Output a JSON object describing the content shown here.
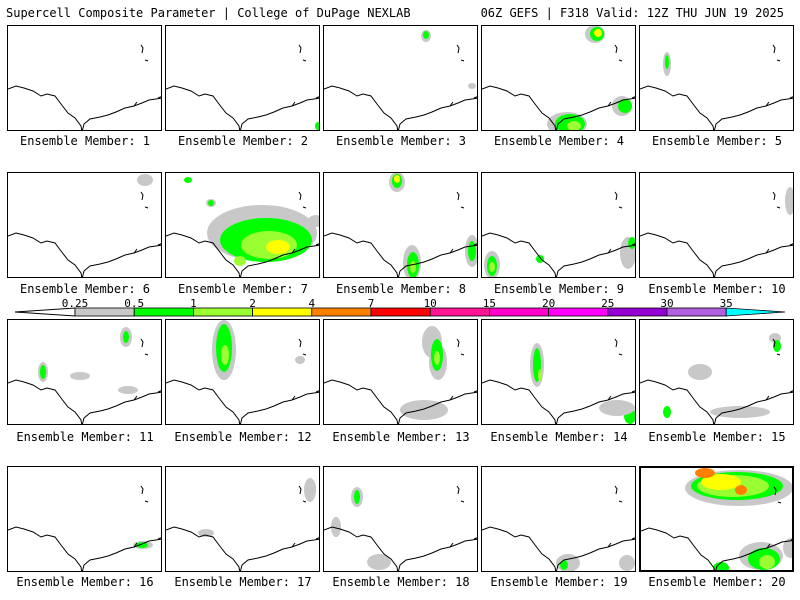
{
  "header": {
    "title": "Supercell Composite Parameter | College of DuPage NEXLAB",
    "run_info": "06Z GEFS | F318 Valid: 12Z THU JUN 19 2025"
  },
  "colors": {
    "0.25": "#c8c8c8",
    "0.5": "#00ff00",
    "1": "#99ff33",
    "2": "#ffff00",
    "4": "#ff8000",
    "7": "#ff0000",
    "10": "#ff1493",
    "15": "#ff00cc",
    "20": "#ff00ff",
    "25": "#9400d3",
    "30": "#b060e0",
    "35": "#00ffff"
  },
  "color_scale": {
    "ticks": [
      "0.25",
      "0.5",
      "1",
      "2",
      "4",
      "7",
      "10",
      "15",
      "20",
      "25",
      "30",
      "35"
    ]
  },
  "members": [
    {
      "label": "Ensemble Member: 1"
    },
    {
      "label": "Ensemble Member: 2"
    },
    {
      "label": "Ensemble Member: 3"
    },
    {
      "label": "Ensemble Member: 4"
    },
    {
      "label": "Ensemble Member: 5"
    },
    {
      "label": "Ensemble Member: 6"
    },
    {
      "label": "Ensemble Member: 7"
    },
    {
      "label": "Ensemble Member: 8"
    },
    {
      "label": "Ensemble Member: 9"
    },
    {
      "label": "Ensemble Member: 10"
    },
    {
      "label": "Ensemble Member: 11"
    },
    {
      "label": "Ensemble Member: 12"
    },
    {
      "label": "Ensemble Member: 13"
    },
    {
      "label": "Ensemble Member: 14"
    },
    {
      "label": "Ensemble Member: 15"
    },
    {
      "label": "Ensemble Member: 16"
    },
    {
      "label": "Ensemble Member: 17"
    },
    {
      "label": "Ensemble Member: 18"
    },
    {
      "label": "Ensemble Member: 19"
    },
    {
      "label": "Ensemble Member: 20",
      "selected": true
    }
  ]
}
